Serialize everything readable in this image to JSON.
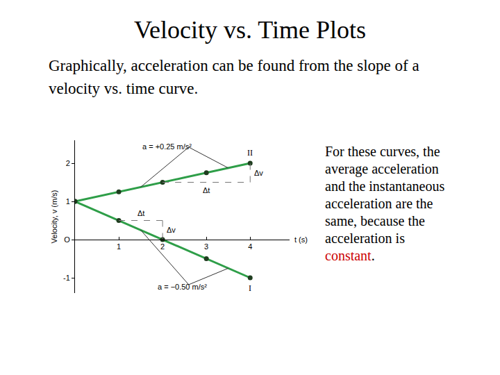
{
  "slide": {
    "title": "Velocity vs. Time Plots",
    "intro": "Graphically, acceleration can be found from the slope of a velocity vs. time curve.",
    "note": {
      "text": "For these curves, the average acceleration and the instantaneous acceleration are the same, because the acceleration is ",
      "emphasis": "constant",
      "end": "."
    }
  },
  "chart_data": {
    "type": "line",
    "x": [
      0,
      1,
      2,
      3,
      4
    ],
    "x_label": "t (s)",
    "y_label": "Velocity, v (m/s)",
    "xlim": [
      0,
      4.9
    ],
    "ylim": [
      -1.4,
      2.6
    ],
    "xticks": [
      1,
      2,
      3,
      4
    ],
    "yticks": [
      -1,
      {
        "value": 0,
        "label": "O"
      },
      1,
      2
    ],
    "grid": false,
    "series": [
      {
        "name": "II",
        "color": "#2e9e48",
        "marker": "circle",
        "values": [
          1,
          1.25,
          1.5,
          1.75,
          2
        ],
        "acceleration_label": "a = +0.25 m/s²",
        "delta": {
          "x": [
            2,
            4
          ],
          "dt_label": "Δt",
          "dv_label": "Δv"
        }
      },
      {
        "name": "I",
        "color": "#2e9e48",
        "marker": "circle",
        "values": [
          1,
          0.5,
          0,
          -0.5,
          -1
        ],
        "acceleration_label": "a = −0.50 m/s²",
        "delta": {
          "x": [
            1,
            2
          ],
          "dt_label": "Δt",
          "dv_label": "Δv"
        }
      }
    ]
  }
}
